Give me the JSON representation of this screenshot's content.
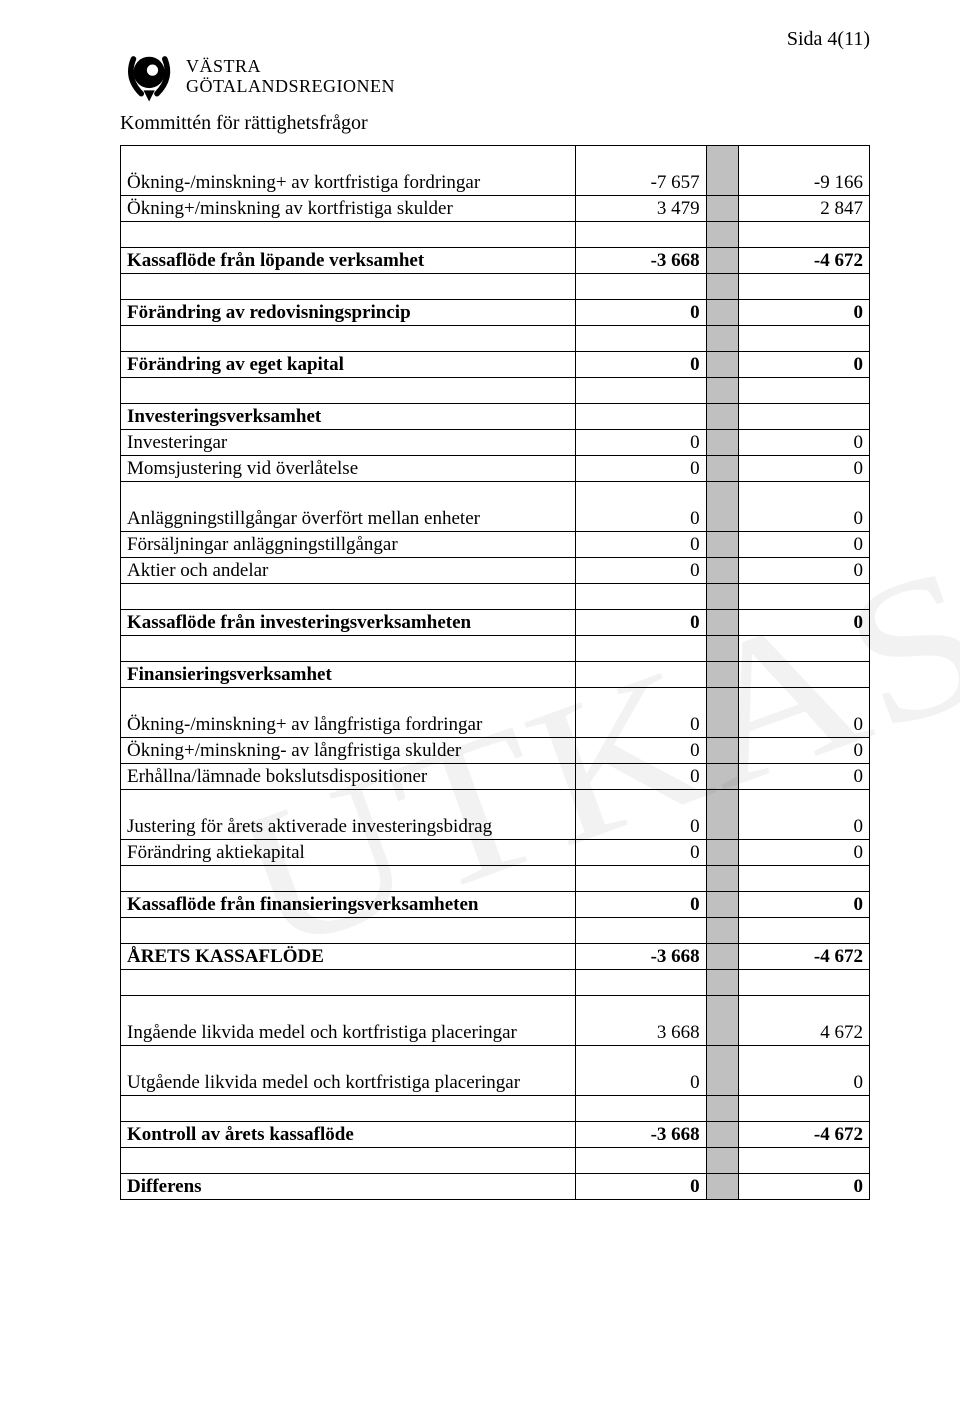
{
  "page_number": "Sida 4(11)",
  "logo": {
    "line1": "VÄSTRA",
    "line2": "GÖTALANDSREGIONEN"
  },
  "committee": "Kommittén för rättighetsfrågor",
  "watermark": "UTKAST",
  "rows": [
    {
      "label": "Ökning-/minskning+ av kortfristiga fordringar",
      "c1": "-7 657",
      "c2": "-9 166",
      "bold": false,
      "tall": true
    },
    {
      "label": "Ökning+/minskning av kortfristiga skulder",
      "c1": "3 479",
      "c2": "2 847",
      "bold": false
    },
    {
      "spacer": true
    },
    {
      "label": "Kassaflöde från löpande verksamhet",
      "c1": "-3 668",
      "c2": "-4 672",
      "bold": true
    },
    {
      "spacer": true
    },
    {
      "label": "Förändring av redovisningsprincip",
      "c1": "0",
      "c2": "0",
      "bold": true
    },
    {
      "spacer": true
    },
    {
      "label": "Förändring av eget kapital",
      "c1": "0",
      "c2": "0",
      "bold": true
    },
    {
      "spacer": true
    },
    {
      "label": "Investeringsverksamhet",
      "c1": "",
      "c2": "",
      "bold": true
    },
    {
      "label": "Investeringar",
      "c1": "0",
      "c2": "0",
      "bold": false
    },
    {
      "label": "Momsjustering vid överlåtelse",
      "c1": "0",
      "c2": "0",
      "bold": false
    },
    {
      "label": "Anläggningstillgångar överfört mellan enheter",
      "c1": "0",
      "c2": "0",
      "bold": false,
      "tall": true
    },
    {
      "label": "Försäljningar anläggningstillgångar",
      "c1": "0",
      "c2": "0",
      "bold": false
    },
    {
      "label": "Aktier och andelar",
      "c1": "0",
      "c2": "0",
      "bold": false
    },
    {
      "spacer": true
    },
    {
      "label": "Kassaflöde från investeringsverksamheten",
      "c1": "0",
      "c2": "0",
      "bold": true
    },
    {
      "spacer": true
    },
    {
      "label": "Finansieringsverksamhet",
      "c1": "",
      "c2": "",
      "bold": true
    },
    {
      "label": "Ökning-/minskning+ av långfristiga fordringar",
      "c1": "0",
      "c2": "0",
      "bold": false,
      "tall": true
    },
    {
      "label": "Ökning+/minskning- av långfristiga skulder",
      "c1": "0",
      "c2": "0",
      "bold": false
    },
    {
      "label": "Erhållna/lämnade bokslutsdispositioner",
      "c1": "0",
      "c2": "0",
      "bold": false
    },
    {
      "label": "Justering för årets aktiverade investeringsbidrag",
      "c1": "0",
      "c2": "0",
      "bold": false,
      "tall": true
    },
    {
      "label": "Förändring aktiekapital",
      "c1": "0",
      "c2": "0",
      "bold": false
    },
    {
      "spacer": true
    },
    {
      "label": "Kassaflöde från finansieringsverksamheten",
      "c1": "0",
      "c2": "0",
      "bold": true
    },
    {
      "spacer": true
    },
    {
      "label": "ÅRETS KASSAFLÖDE",
      "c1": "-3 668",
      "c2": "-4 672",
      "bold": true
    },
    {
      "spacer": true
    },
    {
      "label": "Ingående likvida medel och kortfristiga placeringar",
      "c1": "3 668",
      "c2": "4 672",
      "bold": false,
      "tall": true
    },
    {
      "label": "Utgående likvida medel och kortfristiga placeringar",
      "c1": "0",
      "c2": "0",
      "bold": false,
      "tall": true
    },
    {
      "spacer": true
    },
    {
      "label": "Kontroll av årets kassaflöde",
      "c1": "-3 668",
      "c2": "-4 672",
      "bold": true
    },
    {
      "spacer": true
    },
    {
      "label": "Differens",
      "c1": "0",
      "c2": "0",
      "bold": true
    }
  ]
}
